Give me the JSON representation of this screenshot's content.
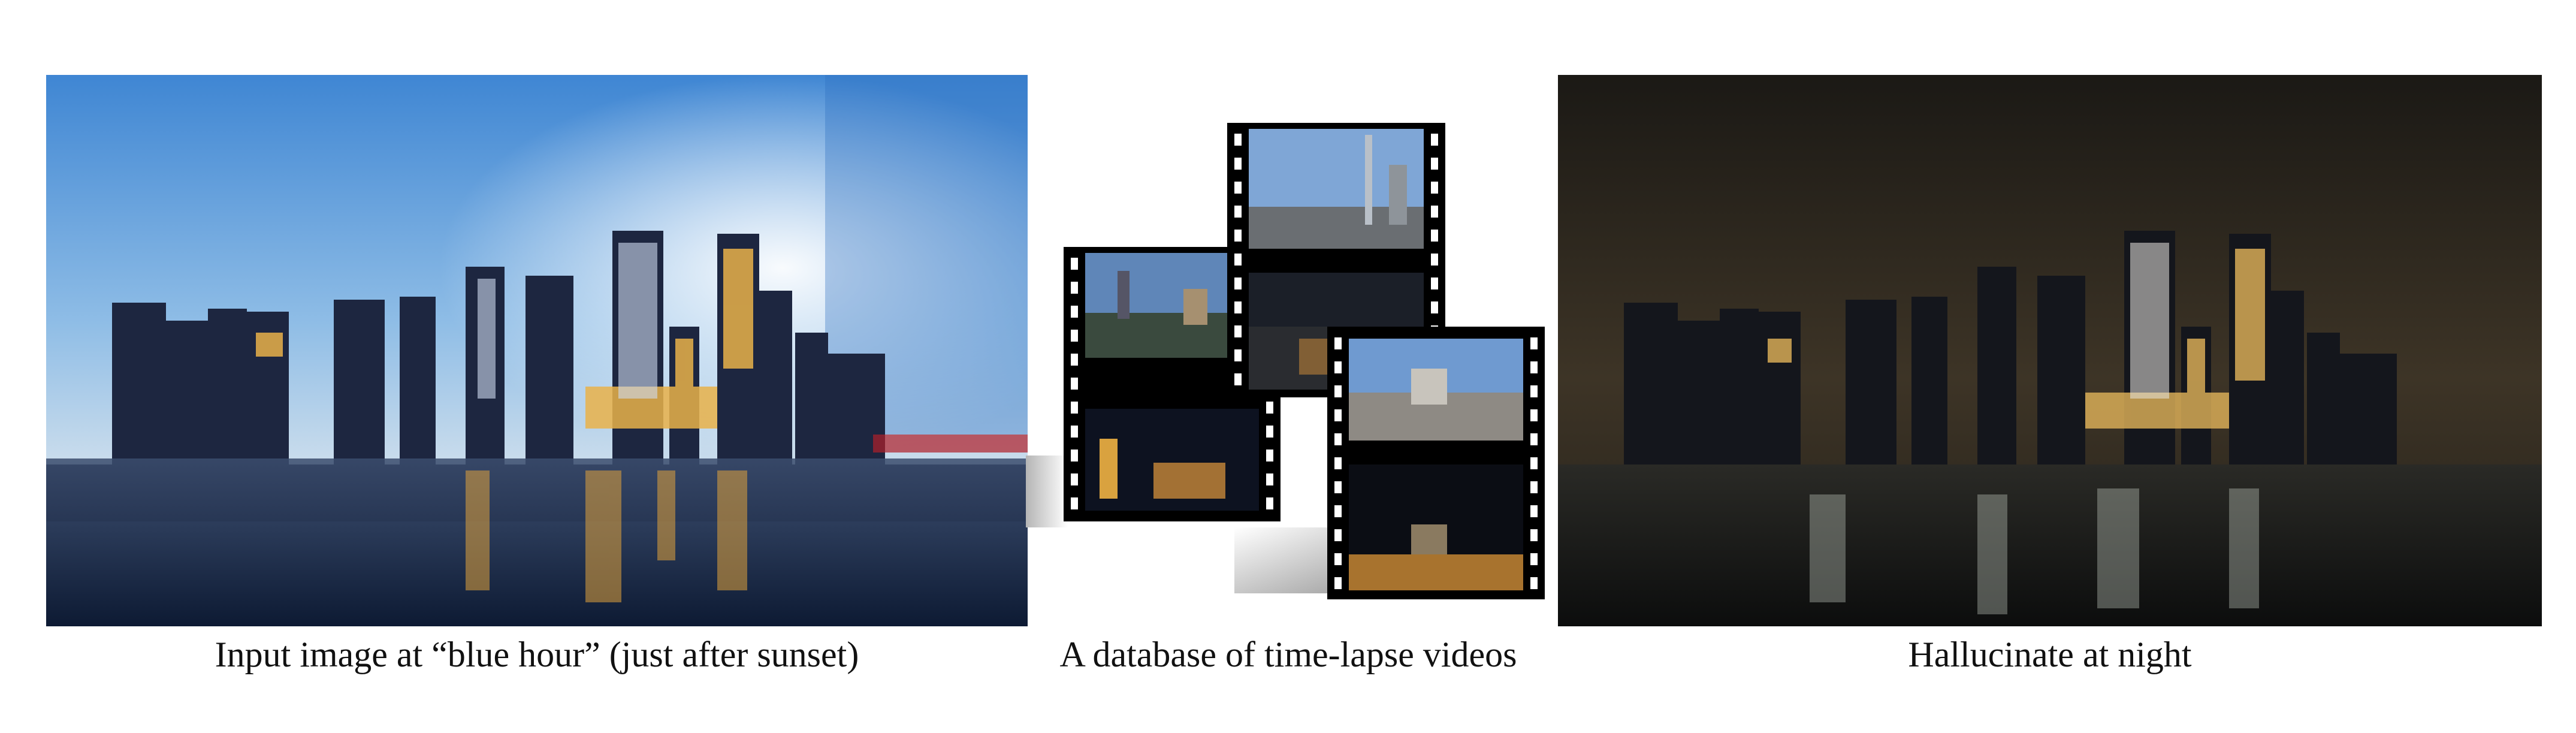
{
  "captions": {
    "input": "Input image at “blue hour” (just after sunset)",
    "database": "A database of time-lapse videos",
    "output": "Hallucinate at night"
  }
}
